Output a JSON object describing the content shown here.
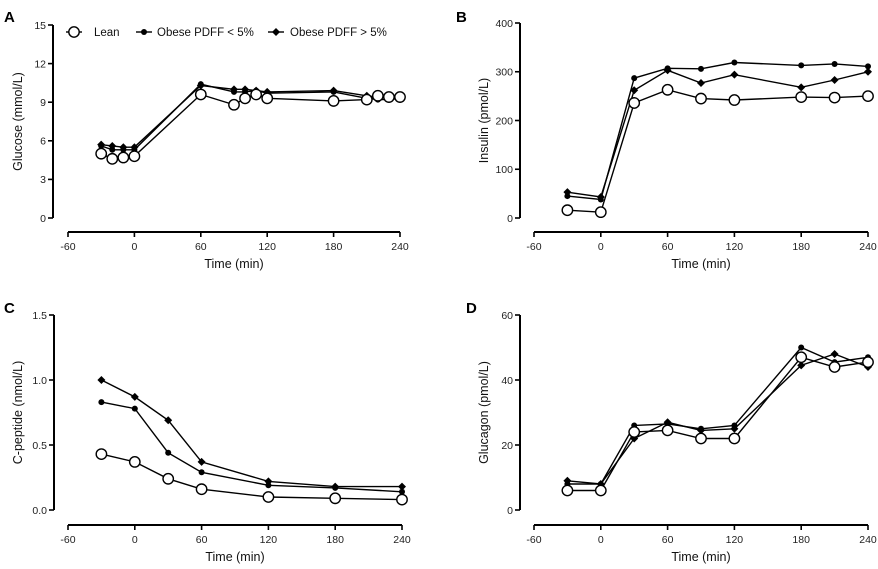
{
  "legend": [
    "Lean",
    "Obese PDFF < 5%",
    "Obese PDFF > 5%"
  ],
  "chart_data": [
    {
      "panel": "A",
      "type": "line",
      "title": "",
      "xlabel": "Time (min)",
      "ylabel": "Glucose (mmol/L)",
      "xlim": [
        -60,
        240
      ],
      "ylim": [
        0,
        15
      ],
      "xticks": [
        -60,
        0,
        60,
        120,
        180,
        240
      ],
      "yticks": [
        0,
        3,
        6,
        9,
        12,
        15
      ],
      "ytick_labels": [
        "0",
        "3",
        "6",
        "9",
        "12",
        "15"
      ],
      "legend": "top-left",
      "x": [
        -30,
        -20,
        -10,
        0,
        60,
        90,
        100,
        110,
        120,
        180,
        210,
        220,
        230,
        240
      ],
      "series": [
        {
          "name": "Lean",
          "marker": "open-circle",
          "values": [
            5.0,
            4.6,
            4.7,
            4.8,
            9.6,
            8.8,
            9.3,
            9.6,
            9.3,
            9.1,
            9.2,
            9.5,
            9.4,
            9.4
          ]
        },
        {
          "name": "Obese PDFF < 5%",
          "marker": "dot",
          "values": [
            5.6,
            5.3,
            5.3,
            5.3,
            10.4,
            9.8,
            9.8,
            9.9,
            9.7,
            9.8,
            9.3,
            9.2,
            9.2,
            9.3
          ]
        },
        {
          "name": "Obese PDFF > 5%",
          "marker": "diamond",
          "values": [
            5.7,
            5.6,
            5.5,
            5.5,
            10.3,
            10.0,
            10.0,
            9.9,
            9.8,
            9.9,
            9.5,
            9.4,
            9.3,
            9.3
          ]
        }
      ]
    },
    {
      "panel": "B",
      "type": "line",
      "title": "",
      "xlabel": "Time (min)",
      "ylabel": "Insulin (pmol/L)",
      "xlim": [
        -60,
        240
      ],
      "ylim": [
        0,
        400
      ],
      "xticks": [
        -60,
        0,
        60,
        120,
        180,
        240
      ],
      "yticks": [
        0,
        100,
        200,
        300,
        400
      ],
      "ytick_labels": [
        "0",
        "100",
        "200",
        "300",
        "400"
      ],
      "x": [
        -30,
        0,
        30,
        60,
        90,
        120,
        180,
        210,
        240
      ],
      "series": [
        {
          "name": "Lean",
          "marker": "open-circle",
          "values": [
            16,
            12,
            236,
            263,
            245,
            242,
            248,
            247,
            250
          ]
        },
        {
          "name": "Obese PDFF < 5%",
          "marker": "dot",
          "values": [
            45,
            38,
            287,
            307,
            306,
            319,
            313,
            316,
            311
          ]
        },
        {
          "name": "Obese PDFF > 5%",
          "marker": "diamond",
          "values": [
            53,
            43,
            262,
            303,
            277,
            294,
            268,
            283,
            300
          ]
        }
      ]
    },
    {
      "panel": "C",
      "type": "line",
      "title": "",
      "xlabel": "Time (min)",
      "ylabel": "C-peptide (nmol/L)",
      "xlim": [
        -60,
        240
      ],
      "ylim": [
        0,
        1.5
      ],
      "xticks": [
        -60,
        0,
        60,
        120,
        180,
        240
      ],
      "yticks": [
        0,
        0.5,
        1.0,
        1.5
      ],
      "ytick_labels": [
        "0.0",
        "0.5",
        "1.0",
        "1.5"
      ],
      "x": [
        -30,
        0,
        30,
        60,
        120,
        180,
        240
      ],
      "series": [
        {
          "name": "Lean",
          "marker": "open-circle",
          "values": [
            0.43,
            0.37,
            0.24,
            0.16,
            0.1,
            0.09,
            0.08
          ]
        },
        {
          "name": "Obese PDFF < 5%",
          "marker": "dot",
          "values": [
            0.83,
            0.78,
            0.44,
            0.29,
            0.19,
            0.17,
            0.14
          ]
        },
        {
          "name": "Obese PDFF > 5%",
          "marker": "diamond",
          "values": [
            1.0,
            0.87,
            0.69,
            0.37,
            0.22,
            0.18,
            0.18
          ]
        }
      ]
    },
    {
      "panel": "D",
      "type": "line",
      "title": "",
      "xlabel": "Time (min)",
      "ylabel": "Glucagon (pmol/L)",
      "xlim": [
        -60,
        240
      ],
      "ylim": [
        0,
        60
      ],
      "xticks": [
        -60,
        0,
        60,
        120,
        180,
        240
      ],
      "yticks": [
        0,
        20,
        40,
        60
      ],
      "ytick_labels": [
        "0",
        "20",
        "40",
        "60"
      ],
      "x": [
        -30,
        0,
        30,
        60,
        90,
        120,
        180,
        210,
        240
      ],
      "series": [
        {
          "name": "Lean",
          "marker": "open-circle",
          "values": [
            6,
            6,
            24,
            24.5,
            22,
            22,
            47,
            44,
            45.5
          ]
        },
        {
          "name": "Obese PDFF < 5%",
          "marker": "dot",
          "values": [
            8,
            8,
            26,
            26.5,
            25,
            26,
            50,
            45.5,
            47
          ]
        },
        {
          "name": "Obese PDFF > 5%",
          "marker": "diamond",
          "values": [
            9,
            8,
            22,
            27,
            24.5,
            25,
            44.5,
            48,
            44
          ]
        }
      ]
    }
  ]
}
